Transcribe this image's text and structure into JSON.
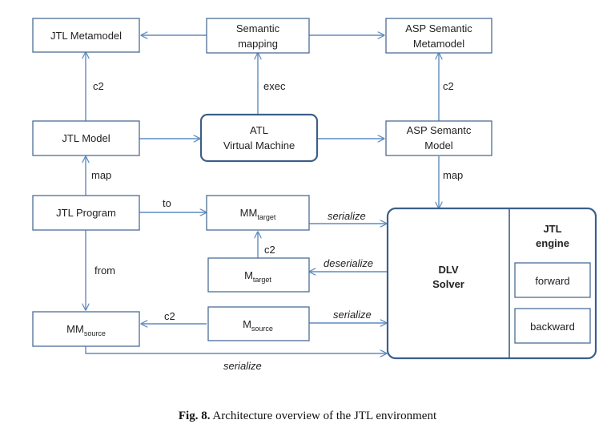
{
  "nodes": {
    "jtl_metamodel": "JTL Metamodel",
    "semantic_mapping": [
      "Semantic",
      "mapping"
    ],
    "asp_semantic_metamodel": [
      "ASP Semantic",
      "Metamodel"
    ],
    "jtl_model": "JTL Model",
    "atl_vm": [
      "ATL",
      "Virtual Machine"
    ],
    "asp_semantic_model": [
      "ASP Semantc",
      "Model"
    ],
    "jtl_program": "JTL Program",
    "mm_target": {
      "base": "MM",
      "sub": "target"
    },
    "m_target": {
      "base": "M",
      "sub": "target"
    },
    "m_source": {
      "base": "M",
      "sub": "source"
    },
    "mm_source": {
      "base": "MM",
      "sub": "source"
    },
    "dlv_solver": [
      "DLV",
      "Solver"
    ],
    "jtl_engine": [
      "JTL",
      "engine"
    ],
    "forward": "forward",
    "backward": "backward"
  },
  "edges": {
    "c2_left": "c2",
    "exec": "exec",
    "c2_right": "c2",
    "map_left": "map",
    "map_right": "map",
    "to": "to",
    "from": "from",
    "serialize_target": "serialize",
    "c2_mid": "c2",
    "deserialize": "deserialize",
    "c2_bottom": "c2",
    "serialize_source": "serialize",
    "serialize_bottom": "serialize"
  },
  "caption": {
    "label": "Fig. 8.",
    "text": " Architecture overview of the JTL environment"
  },
  "colors": {
    "box_border": "#4a6d96",
    "arrow": "#5f8bc0"
  }
}
